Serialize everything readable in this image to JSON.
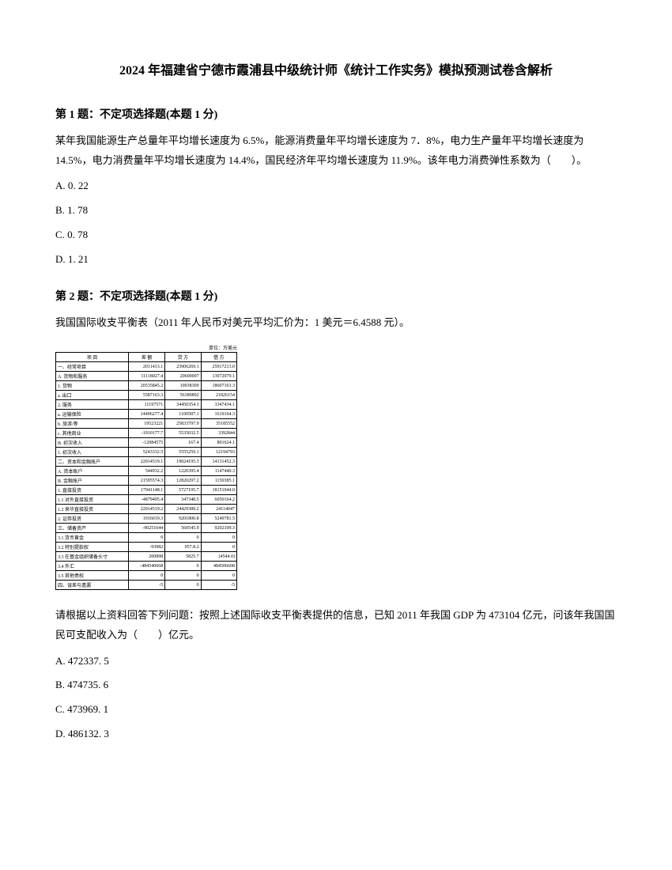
{
  "title": "2024 年福建省宁德市霞浦县中级统计师《统计工作实务》模拟预测试卷含解析",
  "q1": {
    "header": "第 1 题：不定项选择题(本题 1 分)",
    "body": "某年我国能源生产总量年平均增长速度为 6.5%，能源消费量年平均增长速度为 7．8%，电力生产量年平均增长速度为 14.5%，电力消费量年平均增长速度为 14.4%，国民经济年平均增长速度为 11.9%。该年电力消费弹性系数为（　　）。",
    "options": {
      "a": "A. 0. 22",
      "b": "B. 1. 78",
      "c": "C. 0. 78",
      "d": "D. 1. 21"
    }
  },
  "q2": {
    "header": "第 2 题：不定项选择题(本题 1 分)",
    "body": "我国国际收支平衡表（2011 年人民币对美元平均汇价为：1 美元＝6.4588 元）。",
    "table_unit": "单位：万美元",
    "table": {
      "headers": [
        "项 目",
        "差 额",
        "贷 方",
        "借 方"
      ],
      "rows": [
        [
          "一、经常项目",
          "2011413.1",
          "23906269.1",
          "25917213.0"
        ],
        [
          "A. 货物和服务",
          "11118027.4",
          "20600007",
          "13072979.1"
        ],
        [
          "1. 货物",
          "20535845.2",
          "10038309",
          "18607163.3"
        ],
        [
          "a. 出口",
          "5587163.3",
          "56389892",
          "21826154"
        ],
        [
          "2. 服务",
          "11197571",
          "34450354.1",
          "3347434.1"
        ],
        [
          "a. 运输保险",
          "14496277.4",
          "1100587.1",
          "1619164.3"
        ],
        [
          "b. 旅游/等",
          "19523221",
          "25833797.9",
          "35185552"
        ],
        [
          "c. 其他商业",
          "-1910177.7",
          "5535032.5",
          "3392844"
        ],
        [
          "B. 初次收入",
          "-12084575",
          "167.4",
          "801624.1"
        ],
        [
          "1. 初次收入",
          "5243332.5",
          "5555259.1",
          "12194793"
        ],
        [
          "二、资本和金融账户",
          "22014519.1",
          "19024195.3",
          "14131452.3"
        ],
        [
          "A. 资本账户",
          "544932.2",
          "1220395.4",
          "1147440.3"
        ],
        [
          "B. 金融账户",
          "21595574.3",
          "12820297.2",
          "1150385.1"
        ],
        [
          "1. 直接投资",
          "17941148.1",
          "5727195.7",
          "18151044.0"
        ],
        [
          "1.1 对外直接投资",
          "-4879495.4",
          "347348.5",
          "6050164.2"
        ],
        [
          "1.2 来华直接投资",
          "22014519.2",
          "24429389.2",
          "24114047"
        ],
        [
          "2. 证券投资",
          "1916019.3",
          "9201800.8",
          "5249781.5"
        ],
        [
          "三、储备资产",
          "-90251644",
          "560545.9",
          "9202109.3"
        ],
        [
          "3.1 货币黄金",
          "0",
          "0",
          "0"
        ],
        [
          "3.2 特别提款权",
          "-93982",
          "957.8.2",
          "0"
        ],
        [
          "3.3 在基金组织储备头寸",
          "200898",
          "5825.7",
          "(4544.0)"
        ],
        [
          "3.4 外汇",
          "-484540668",
          "0",
          "484506608"
        ],
        [
          "3.5 其他债权",
          "0",
          "0",
          "0"
        ],
        [
          "四、误差与遗漏",
          "-5",
          "0",
          "-5"
        ]
      ]
    },
    "followup": "请根据以上资料回答下列问题：按照上述国际收支平衡表提供的信息，已知 2011 年我国 GDP 为 473104 亿元，问该年我国国民可支配收入为（　　）亿元。",
    "options": {
      "a": "A. 472337. 5",
      "b": "B. 474735. 6",
      "c": "C. 473969. 1",
      "d": "D. 486132. 3"
    }
  }
}
